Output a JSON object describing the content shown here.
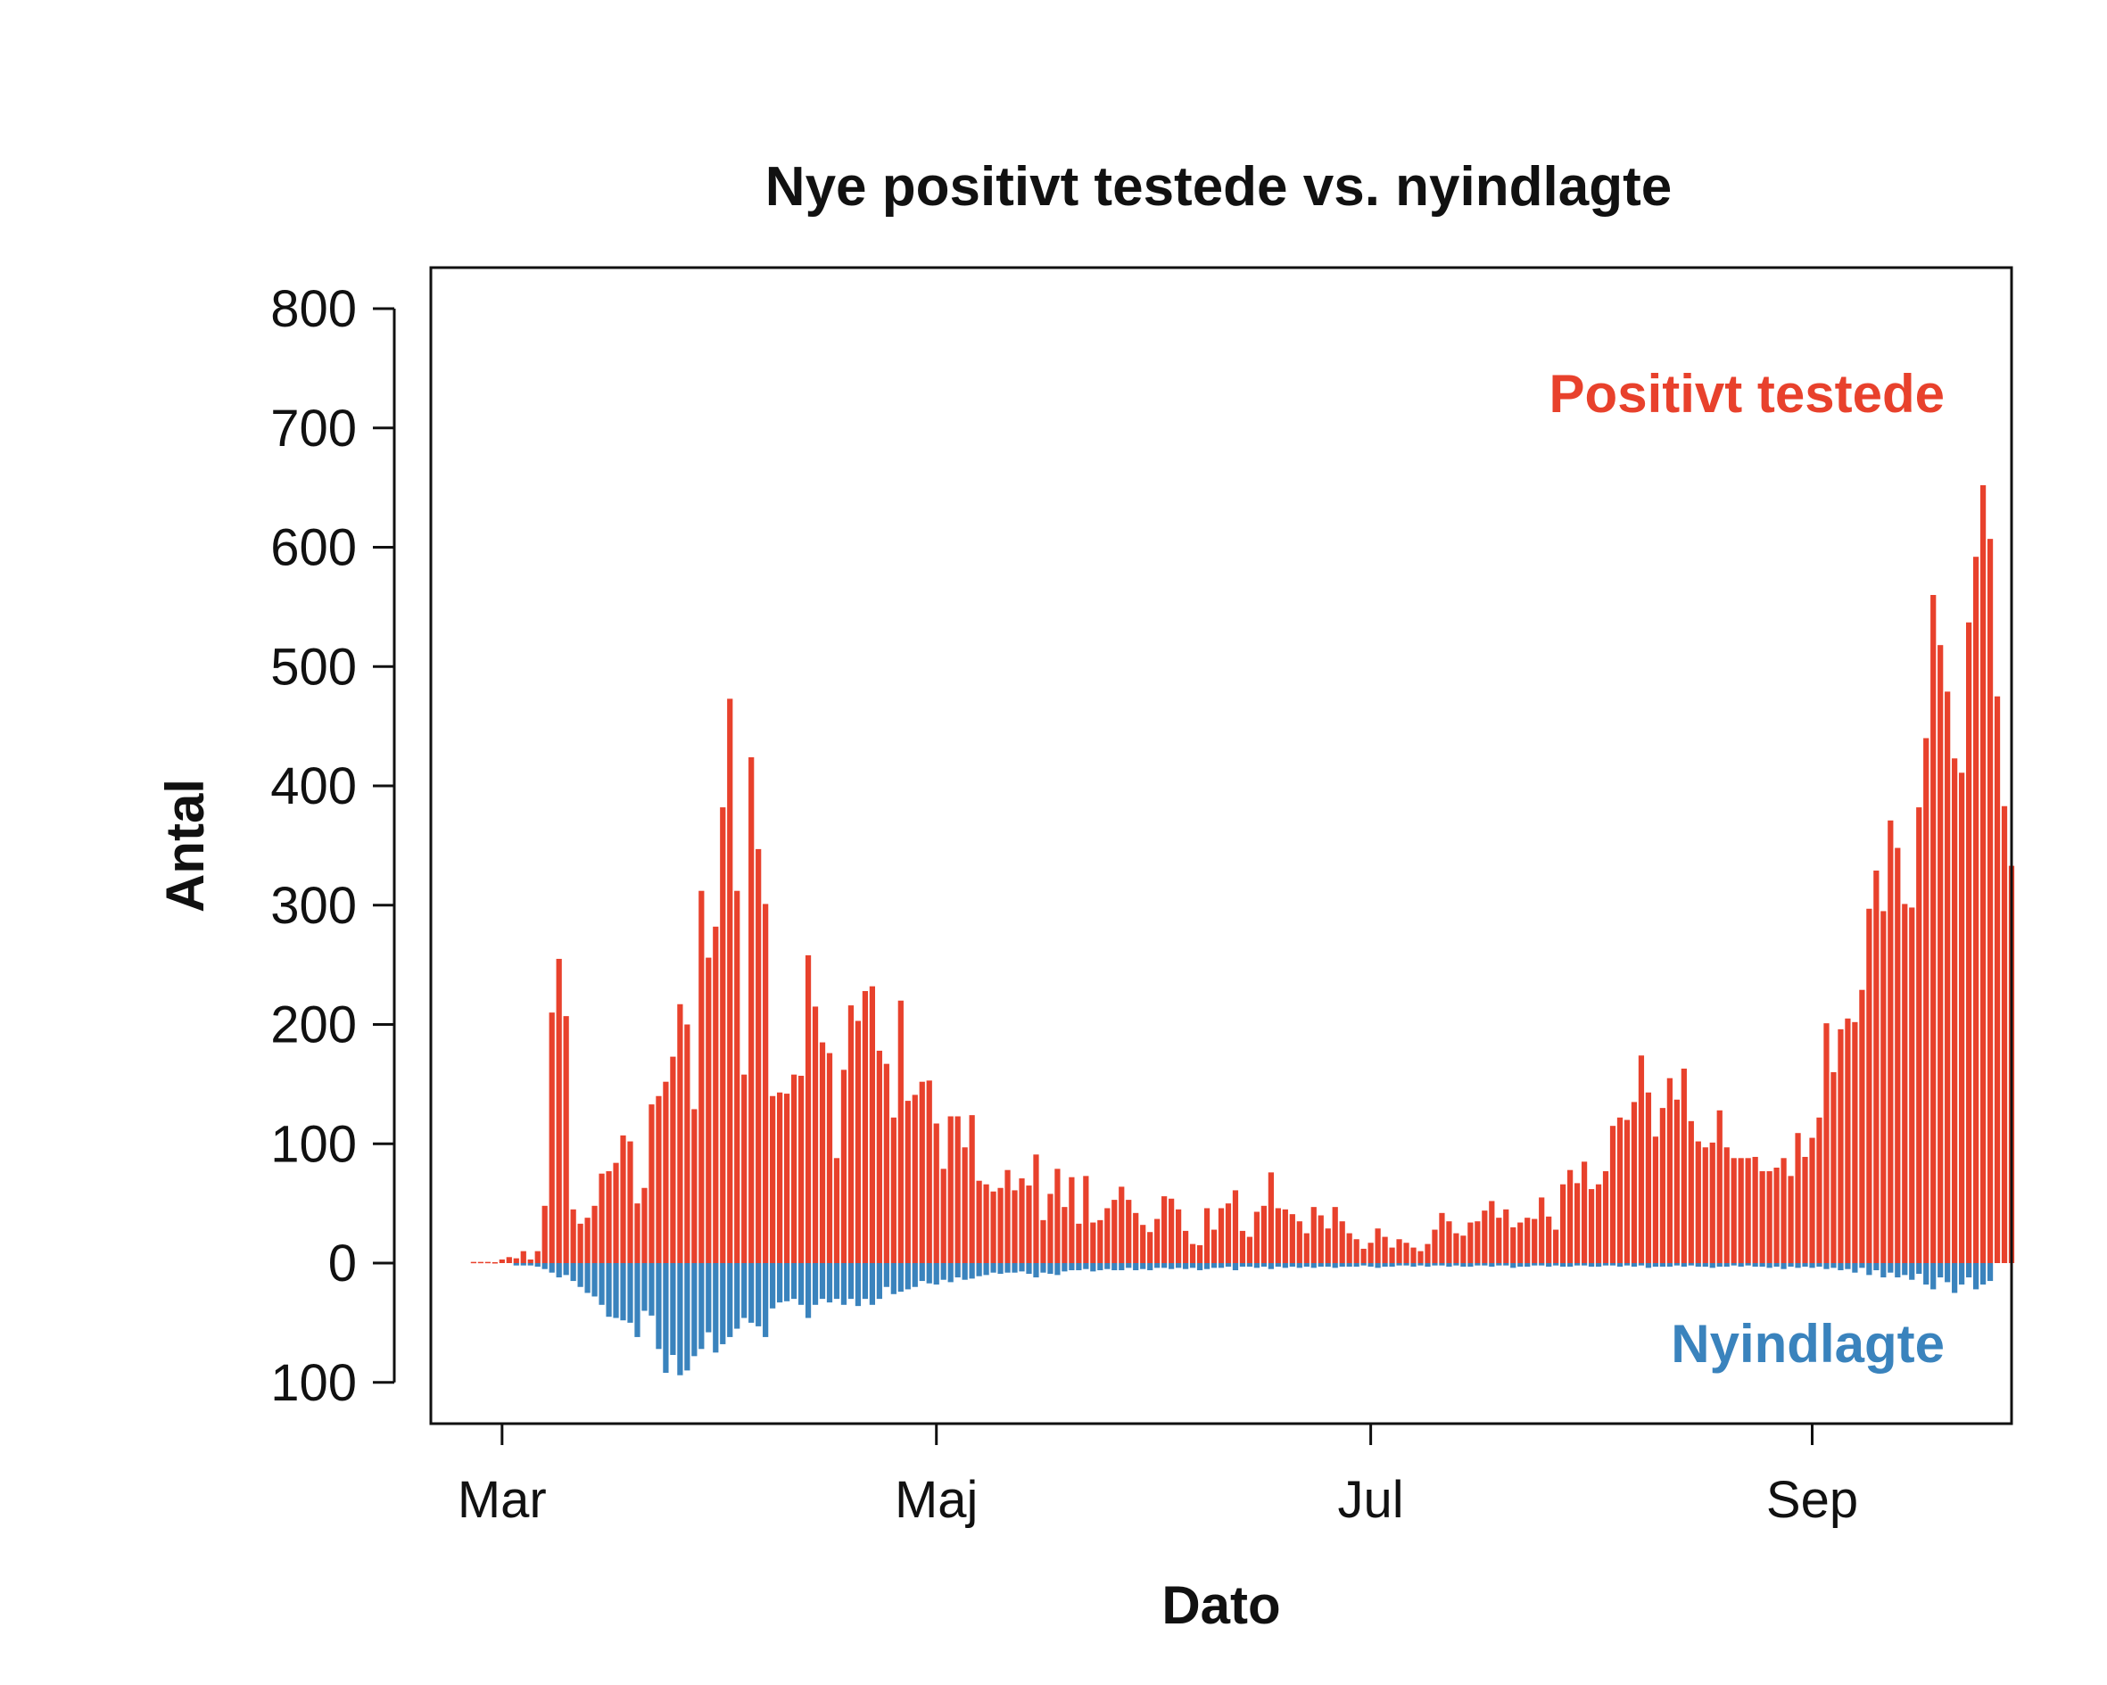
{
  "chart_data": {
    "type": "bar",
    "title": "Nye positivt testede vs. nyindlagte",
    "xlabel": "Dato",
    "ylabel": "Antal",
    "ylim": [
      -135,
      800
    ],
    "yticks": [
      {
        "value": 800,
        "label": "800"
      },
      {
        "value": 700,
        "label": "700"
      },
      {
        "value": 600,
        "label": "600"
      },
      {
        "value": 500,
        "label": "500"
      },
      {
        "value": 400,
        "label": "400"
      },
      {
        "value": 300,
        "label": "300"
      },
      {
        "value": 200,
        "label": "200"
      },
      {
        "value": 100,
        "label": "100"
      },
      {
        "value": 0,
        "label": "0"
      },
      {
        "value": -100,
        "label": "100"
      }
    ],
    "x_start": "2020-02-20",
    "x_end": "2020-09-29",
    "xticks": [
      {
        "date": "2020-03-01",
        "label": "Mar"
      },
      {
        "date": "2020-05-01",
        "label": "Maj"
      },
      {
        "date": "2020-07-01",
        "label": "Jul"
      },
      {
        "date": "2020-09-01",
        "label": "Sep"
      }
    ],
    "series": [
      {
        "name": "Positivt testede",
        "color": "#e8412c",
        "start_date": "2020-02-26",
        "values": [
          1,
          1,
          1,
          0,
          3,
          5,
          4,
          10,
          3,
          10,
          48,
          210,
          255,
          207,
          45,
          33,
          38,
          48,
          75,
          77,
          84,
          107,
          102,
          50,
          63,
          133,
          140,
          152,
          173,
          217,
          200,
          129,
          312,
          256,
          282,
          382,
          473,
          312,
          158,
          424,
          347,
          301,
          140,
          143,
          142,
          158,
          157,
          258,
          215,
          185,
          176,
          88,
          162,
          216,
          203,
          228,
          232,
          178,
          167,
          122,
          220,
          136,
          141,
          152,
          153,
          117,
          79,
          123,
          123,
          97,
          124,
          69,
          66,
          60,
          63,
          78,
          61,
          71,
          65,
          91,
          36,
          58,
          79,
          47,
          72,
          33,
          73,
          34,
          36,
          46,
          53,
          64,
          53,
          42,
          32,
          26,
          37,
          56,
          54,
          45,
          27,
          16,
          15,
          46,
          28,
          46,
          50,
          61,
          27,
          22,
          43,
          48,
          76,
          46,
          45,
          41,
          35,
          25,
          47,
          40,
          29,
          47,
          35,
          25,
          20,
          12,
          17,
          29,
          22,
          13,
          20,
          17,
          13,
          10,
          16,
          28,
          42,
          35,
          25,
          23,
          34,
          35,
          44,
          52,
          38,
          45,
          30,
          34,
          38,
          37,
          55,
          39,
          28,
          66,
          78,
          67,
          85,
          62,
          66,
          77,
          115,
          122,
          120,
          135,
          174,
          143,
          106,
          130,
          155,
          137,
          163,
          119,
          102,
          97,
          101,
          128,
          97,
          88,
          88,
          88,
          89,
          77,
          77,
          80,
          88,
          73,
          109,
          89,
          105,
          122,
          201,
          160,
          196,
          205,
          202,
          229,
          297,
          329,
          295,
          371,
          348,
          301,
          298,
          382,
          440,
          560,
          518,
          479,
          423,
          411,
          537,
          592,
          652,
          607,
          475,
          383,
          333
        ]
      },
      {
        "name": "Nyindlagte",
        "color": "#3a83bd",
        "start_date": "2020-03-03",
        "values": [
          2,
          2,
          2,
          3,
          5,
          8,
          12,
          10,
          15,
          20,
          25,
          28,
          35,
          45,
          46,
          48,
          50,
          62,
          40,
          44,
          72,
          92,
          77,
          94,
          90,
          78,
          72,
          58,
          75,
          68,
          62,
          55,
          46,
          50,
          53,
          62,
          38,
          33,
          32,
          30,
          35,
          46,
          35,
          30,
          33,
          30,
          35,
          30,
          36,
          30,
          35,
          30,
          20,
          26,
          24,
          22,
          20,
          15,
          17,
          18,
          14,
          16,
          12,
          14,
          13,
          11,
          10,
          8,
          9,
          8,
          8,
          7,
          9,
          12,
          8,
          9,
          10,
          7,
          6,
          6,
          5,
          7,
          6,
          5,
          6,
          6,
          4,
          6,
          5,
          6,
          4,
          4,
          5,
          4,
          5,
          4,
          6,
          5,
          4,
          4,
          3,
          6,
          3,
          3,
          4,
          3,
          5,
          3,
          4,
          3,
          4,
          3,
          4,
          3,
          3,
          4,
          3,
          3,
          3,
          2,
          3,
          4,
          3,
          3,
          2,
          2,
          3,
          2,
          3,
          2,
          2,
          3,
          2,
          3,
          3,
          2,
          2,
          3,
          2,
          2,
          4,
          3,
          3,
          2,
          2,
          3,
          2,
          3,
          3,
          2,
          2,
          3,
          3,
          2,
          2,
          3,
          2,
          3,
          2,
          4,
          3,
          3,
          3,
          2,
          3,
          2,
          3,
          3,
          4,
          3,
          3,
          2,
          3,
          2,
          3,
          3,
          4,
          3,
          5,
          3,
          4,
          3,
          4,
          3,
          5,
          4,
          6,
          5,
          8,
          4,
          10,
          6,
          12,
          8,
          12,
          10,
          14,
          9,
          18,
          22,
          12,
          16,
          25,
          18,
          12,
          22,
          18,
          15
        ]
      }
    ]
  }
}
